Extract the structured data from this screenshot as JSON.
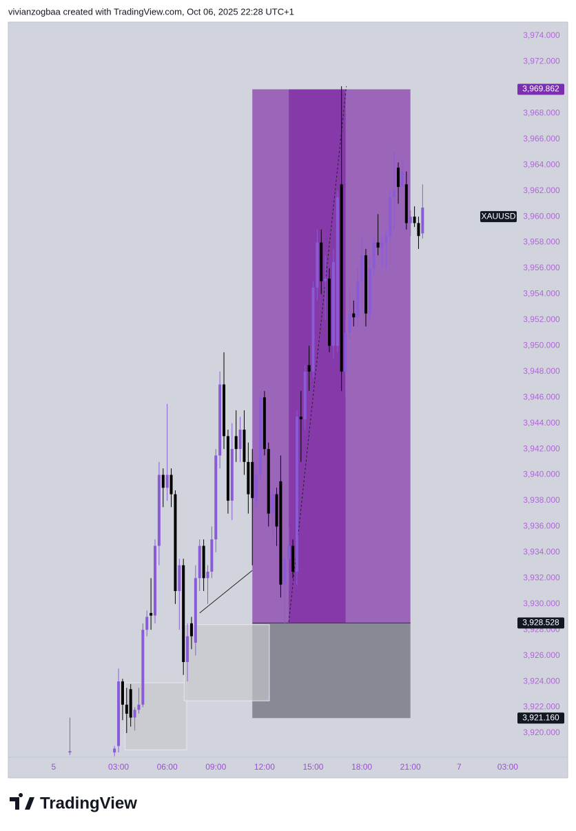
{
  "header": "vivianzogbaa created with TradingView.com, Oct 06, 2025 22:28 UTC+1",
  "footer": {
    "brand": "TradingView"
  },
  "chart_data": {
    "type": "candlestick",
    "background": "#d1d4dc",
    "up_color": "#8a5bd6",
    "down_color": "#000000",
    "xlim": [
      -3.8,
      30.7
    ],
    "ylim": [
      3918.13,
      3975.07
    ],
    "xticks": [
      {
        "value": -1,
        "label": "5"
      },
      {
        "value": 3,
        "label": "03:00"
      },
      {
        "value": 6,
        "label": "06:00"
      },
      {
        "value": 9,
        "label": "09:00"
      },
      {
        "value": 12,
        "label": "12:00"
      },
      {
        "value": 15,
        "label": "15:00"
      },
      {
        "value": 18,
        "label": "18:00"
      },
      {
        "value": 21,
        "label": "21:00"
      },
      {
        "value": 24,
        "label": "7"
      },
      {
        "value": 27,
        "label": "03:00"
      }
    ],
    "yticks": [
      {
        "value": 3920,
        "label": "3,920.000"
      },
      {
        "value": 3922,
        "label": "3,922.000"
      },
      {
        "value": 3924,
        "label": "3,924.000"
      },
      {
        "value": 3926,
        "label": "3,926.000"
      },
      {
        "value": 3928,
        "label": "3,928.000"
      },
      {
        "value": 3930,
        "label": "3,930.000"
      },
      {
        "value": 3932,
        "label": "3,932.000"
      },
      {
        "value": 3934,
        "label": "3,934.000"
      },
      {
        "value": 3936,
        "label": "3,936.000"
      },
      {
        "value": 3938,
        "label": "3,938.000"
      },
      {
        "value": 3940,
        "label": "3,940.000"
      },
      {
        "value": 3942,
        "label": "3,942.000"
      },
      {
        "value": 3944,
        "label": "3,944.000"
      },
      {
        "value": 3946,
        "label": "3,946.000"
      },
      {
        "value": 3948,
        "label": "3,948.000"
      },
      {
        "value": 3950,
        "label": "3,950.000"
      },
      {
        "value": 3952,
        "label": "3,952.000"
      },
      {
        "value": 3954,
        "label": "3,954.000"
      },
      {
        "value": 3956,
        "label": "3,956.000"
      },
      {
        "value": 3958,
        "label": "3,958.000"
      },
      {
        "value": 3960,
        "label": "3,960.000"
      },
      {
        "value": 3962,
        "label": "3,962.000"
      },
      {
        "value": 3964,
        "label": "3,964.000"
      },
      {
        "value": 3966,
        "label": "3,966.000"
      },
      {
        "value": 3968,
        "label": "3,968.000"
      },
      {
        "value": 3970,
        "label": "3,970.000"
      },
      {
        "value": 3972,
        "label": "3,972.000"
      },
      {
        "value": 3974,
        "label": "3,974.000"
      }
    ],
    "x": [
      0,
      2.75,
      3,
      3.25,
      3.5,
      3.75,
      4,
      4.25,
      4.5,
      4.75,
      5,
      5.25,
      5.5,
      5.75,
      6,
      6.25,
      6.5,
      6.75,
      7,
      7.25,
      7.5,
      7.75,
      8,
      8.25,
      8.5,
      8.75,
      9,
      9.25,
      9.5,
      9.75,
      10,
      10.25,
      10.5,
      10.75,
      11,
      11.25,
      11.5,
      11.75,
      12,
      12.25,
      12.5,
      12.75,
      13,
      13.25,
      13.5,
      13.75,
      14,
      14.25,
      14.5,
      14.75,
      15,
      15.25,
      15.5,
      15.75,
      16,
      16.25,
      16.5,
      16.75,
      17,
      17.25,
      17.5,
      17.75,
      18,
      18.25,
      18.5,
      18.75,
      19,
      19.25,
      19.5,
      19.75,
      20,
      20.25,
      20.5,
      20.75,
      21,
      21.25,
      21.5,
      21.75
    ],
    "open": [
      3918.5,
      3918.5,
      3919,
      3924,
      3922.2,
      3923.4,
      3921.2,
      3921.8,
      3922.2,
      3928,
      3929.3,
      3929.1,
      3934.5,
      3940,
      3939,
      3940,
      3938.5,
      3931,
      3933,
      3925.5,
      3928.5,
      3927,
      3932,
      3934.5,
      3932,
      3932.5,
      3935,
      3941.5,
      3947,
      3943,
      3938,
      3943,
      3942,
      3943.5,
      3941,
      3941,
      3938,
      3940,
      3946,
      3942,
      3937,
      3938.5,
      3939.5,
      3931.5,
      3933.5,
      3934.5,
      3932.5,
      3944.5,
      3944.3,
      3948.5,
      3948,
      3954.5,
      3958,
      3955,
      3955.2,
      3950,
      3950,
      3962.5,
      3948,
      3951,
      3952.5,
      3952.2,
      3955,
      3957,
      3952.5,
      3956,
      3958,
      3957.6,
      3958,
      3958.5,
      3961.5,
      3963.8,
      3962.3,
      3962.5,
      3959.5,
      3960,
      3959.5,
      3958.7
    ],
    "high": [
      3921.2,
      3919,
      3925,
      3924.2,
      3923.5,
      3923.8,
      3922,
      3923.5,
      3928.5,
      3929.5,
      3932,
      3935,
      3941,
      3940.5,
      3945.5,
      3940.5,
      3938.8,
      3933.5,
      3933.5,
      3928.5,
      3929,
      3933,
      3935,
      3935,
      3933,
      3936,
      3942,
      3948,
      3949.5,
      3943.5,
      3944,
      3945,
      3944.5,
      3945,
      3942.5,
      3942,
      3940.5,
      3946.5,
      3946.5,
      3942.5,
      3939,
      3939,
      3941.5,
      3934,
      3936,
      3935,
      3945,
      3946.5,
      3948.5,
      3950,
      3955,
      3959,
      3959,
      3957,
      3956,
      3957.5,
      3962,
      3970.1,
      3952,
      3954.5,
      3953.5,
      3956,
      3958.5,
      3957.5,
      3957,
      3958.5,
      3960.2,
      3958.5,
      3959,
      3962,
      3965,
      3964.2,
      3964.5,
      3963.5,
      3960.5,
      3960.8,
      3960,
      3962.5
    ],
    "low": [
      3918.3,
      3918.2,
      3918.5,
      3921,
      3920,
      3920.5,
      3920.2,
      3921.5,
      3922,
      3927.5,
      3928,
      3928.5,
      3933,
      3937.5,
      3938,
      3937.5,
      3930,
      3928,
      3924.5,
      3924,
      3926.5,
      3926,
      3931,
      3931,
      3930,
      3932,
      3934,
      3940.5,
      3942,
      3937,
      3936.5,
      3941,
      3941,
      3940,
      3937,
      3933,
      3937.5,
      3939.5,
      3941.5,
      3936,
      3935,
      3934.5,
      3930.5,
      3928.5,
      3931,
      3932,
      3931.5,
      3941,
      3943.5,
      3946.5,
      3947.5,
      3953.5,
      3954,
      3952,
      3949.5,
      3949,
      3949.5,
      3946.5,
      3946,
      3950.5,
      3951.5,
      3951.5,
      3953,
      3951.5,
      3952,
      3955.5,
      3957,
      3956,
      3956,
      3958,
      3959,
      3961,
      3962,
      3959,
      3958.5,
      3959.2,
      3957.5,
      3958.3
    ],
    "close": [
      3918.6,
      3918.8,
      3924,
      3922.2,
      3921.5,
      3921.2,
      3921.8,
      3922.2,
      3928,
      3929,
      3929.1,
      3934.5,
      3940,
      3939,
      3940,
      3938.5,
      3931,
      3933,
      3925.5,
      3927.5,
      3927.5,
      3932,
      3934.5,
      3932,
      3932.5,
      3935,
      3941.5,
      3947,
      3943,
      3938,
      3942,
      3942,
      3943.5,
      3941,
      3938.5,
      3938.2,
      3940,
      3946,
      3942,
      3937,
      3938.5,
      3936,
      3931.5,
      3933.5,
      3934.5,
      3932.5,
      3944.5,
      3944.3,
      3948,
      3948,
      3954.5,
      3958,
      3955,
      3955.2,
      3950,
      3956.5,
      3961.5,
      3948,
      3951,
      3952.5,
      3952.2,
      3955,
      3957,
      3952.5,
      3956,
      3958,
      3957.6,
      3958,
      3958.5,
      3961.5,
      3962,
      3962.3,
      3963.5,
      3959.5,
      3960,
      3959.5,
      3958.5,
      3960.7
    ],
    "position": {
      "start": 11.25,
      "end": 21,
      "highlight_start": 13.5,
      "highlight_end": 17,
      "entry": 3928.528,
      "target": 3969.862,
      "stop": 3921.16,
      "profit_color": "#9b66b9",
      "highlight_color": "#8639a8",
      "stop_color": "#878a94"
    },
    "boxes": [
      {
        "x": [
          3.4,
          7.2
        ],
        "y": [
          3918.7,
          3923.9
        ]
      },
      {
        "x": [
          7.05,
          12.3
        ],
        "y": [
          3922.5,
          3928.4
        ]
      }
    ],
    "lines": [
      {
        "x": [
          8.0,
          11.25
        ],
        "y": [
          3929.3,
          3932.6
        ],
        "dash": false
      },
      {
        "x": [
          13.5,
          17.05
        ],
        "y": [
          3928.6,
          3970.1
        ],
        "dash": true
      }
    ],
    "price_labels": [
      {
        "value": 3969.862,
        "label": "3,969.862",
        "color": "#7b2fb0"
      },
      {
        "value": 3928.528,
        "label": "3,928.528",
        "color": "#131722"
      },
      {
        "value": 3921.16,
        "label": "3,921.160",
        "color": "#131722"
      }
    ],
    "symbol_label": {
      "text": "XAUUSD",
      "value": 3960
    }
  }
}
